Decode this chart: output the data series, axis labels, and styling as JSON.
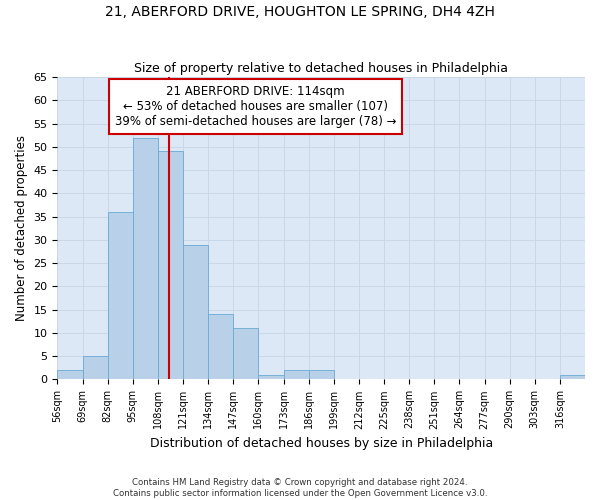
{
  "title1": "21, ABERFORD DRIVE, HOUGHTON LE SPRING, DH4 4ZH",
  "title2": "Size of property relative to detached houses in Philadelphia",
  "xlabel": "Distribution of detached houses by size in Philadelphia",
  "ylabel": "Number of detached properties",
  "annotation_line1": "21 ABERFORD DRIVE: 114sqm",
  "annotation_line2": "← 53% of detached houses are smaller (107)",
  "annotation_line3": "39% of semi-detached houses are larger (78) →",
  "bin_edges": [
    56,
    69,
    82,
    95,
    108,
    121,
    134,
    147,
    160,
    173,
    186,
    199,
    212,
    225,
    238,
    251,
    264,
    277,
    290,
    303,
    316
  ],
  "bar_values": [
    2,
    5,
    36,
    52,
    49,
    29,
    14,
    11,
    1,
    2,
    2,
    0,
    0,
    0,
    0,
    0,
    0,
    0,
    0,
    0,
    1
  ],
  "bar_color": "#b8d0e8",
  "bar_edge_color": "#6aaad4",
  "vline_color": "#cc0000",
  "vline_x": 114,
  "annotation_box_color": "#ffffff",
  "annotation_box_edge": "#cc0000",
  "ylim": [
    0,
    65
  ],
  "yticks": [
    0,
    5,
    10,
    15,
    20,
    25,
    30,
    35,
    40,
    45,
    50,
    55,
    60,
    65
  ],
  "grid_color": "#c8d8e8",
  "bg_color": "#dce8f5",
  "fig_bg_color": "#ffffff",
  "footnote1": "Contains HM Land Registry data © Crown copyright and database right 2024.",
  "footnote2": "Contains public sector information licensed under the Open Government Licence v3.0."
}
